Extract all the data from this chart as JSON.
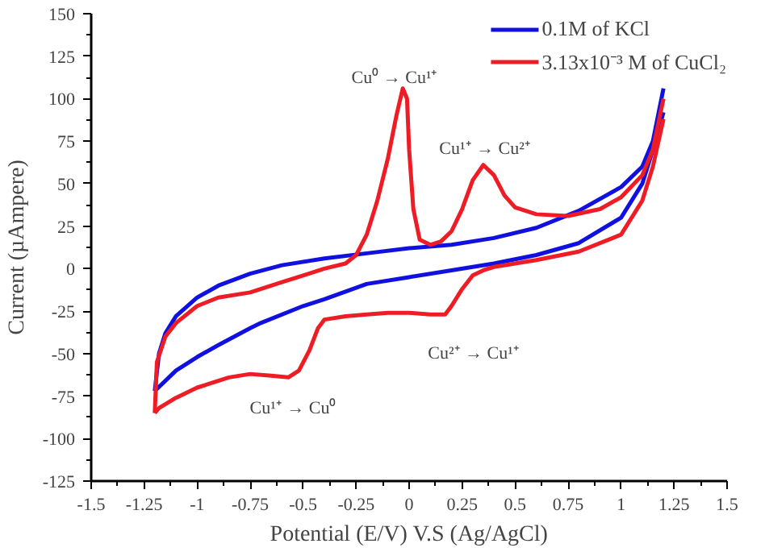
{
  "chart_data": {
    "type": "line",
    "xlabel": "Potential (E/V) V.S (Ag/AgCl)",
    "ylabel": "Current (µAmpere)",
    "xlim": [
      -1.5,
      1.5
    ],
    "xticks": [
      -1.5,
      -1.25,
      -1,
      -0.75,
      -0.5,
      -0.25,
      0,
      0.25,
      0.5,
      0.75,
      1,
      1.25,
      1.5
    ],
    "ylim": [
      -125,
      150
    ],
    "yticks": [
      -125,
      -100,
      -75,
      -50,
      -25,
      0,
      25,
      50,
      75,
      100,
      125,
      150
    ],
    "grid": false,
    "legend": "top right",
    "marker": "none",
    "line_style": "solid",
    "series": [
      {
        "name": "0.1M of KCl",
        "color": "#1010e0",
        "x": [
          -1.2,
          -1.18,
          -1.15,
          -1.1,
          -1.0,
          -0.9,
          -0.75,
          -0.6,
          -0.4,
          -0.2,
          0,
          0.2,
          0.4,
          0.6,
          0.8,
          1.0,
          1.1,
          1.15,
          1.2
        ],
        "values": [
          -72,
          -50,
          -38,
          -28,
          -17,
          -10,
          -3,
          2,
          6,
          9,
          12,
          14,
          18,
          24,
          34,
          48,
          60,
          75,
          106
        ]
      },
      {
        "color": "#1010e0",
        "x": [
          1.2,
          1.15,
          1.1,
          1.0,
          0.8,
          0.6,
          0.4,
          0.2,
          0,
          -0.2,
          -0.4,
          -0.5,
          -0.7,
          -0.75,
          -0.9,
          -1.0,
          -1.1,
          -1.2
        ],
        "values": [
          92,
          70,
          50,
          30,
          15,
          8,
          3,
          -1,
          -5,
          -9,
          -18,
          -22,
          -32,
          -35,
          -45,
          -52,
          -60,
          -72
        ]
      },
      {
        "name": "3.13x10⁻³ M of CuCl₂",
        "color": "#ee1c24",
        "x": [
          -1.2,
          -1.19,
          -1.15,
          -1.1,
          -1.0,
          -0.9,
          -0.75,
          -0.6,
          -0.5,
          -0.4,
          -0.3,
          -0.25,
          -0.2,
          -0.15,
          -0.1,
          -0.06,
          -0.03,
          -0.01,
          0.0,
          0.02,
          0.05,
          0.1,
          0.15,
          0.2,
          0.25,
          0.3,
          0.35,
          0.4,
          0.45,
          0.5,
          0.6,
          0.75,
          0.9,
          1.0,
          1.1,
          1.15,
          1.2
        ],
        "values": [
          -85,
          -55,
          -40,
          -32,
          -22,
          -17,
          -14,
          -8,
          -4,
          0,
          3,
          8,
          20,
          40,
          65,
          90,
          106,
          100,
          70,
          35,
          17,
          14,
          16,
          22,
          35,
          52,
          61,
          55,
          43,
          36,
          32,
          31,
          35,
          42,
          55,
          70,
          100
        ]
      },
      {
        "color": "#ee1c24",
        "x": [
          1.2,
          1.15,
          1.1,
          1.0,
          0.8,
          0.6,
          0.4,
          0.35,
          0.3,
          0.25,
          0.2,
          0.17,
          0.1,
          0.0,
          -0.1,
          -0.2,
          -0.3,
          -0.4,
          -0.43,
          -0.47,
          -0.52,
          -0.57,
          -0.65,
          -0.75,
          -0.85,
          -1.0,
          -1.1,
          -1.18,
          -1.2
        ],
        "values": [
          88,
          60,
          40,
          20,
          10,
          5,
          1,
          -1,
          -4,
          -12,
          -22,
          -27,
          -27,
          -26,
          -26,
          -27,
          -28,
          -30,
          -35,
          -48,
          -60,
          -64,
          -63,
          -62,
          -64,
          -70,
          -76,
          -82,
          -85
        ]
      }
    ],
    "annotations": [
      "Cu⁰ → Cu¹⁺",
      "Cu¹⁺ → Cu²⁺",
      "Cu²⁺ → Cu¹⁺",
      "Cu¹⁺ → Cu⁰"
    ]
  }
}
